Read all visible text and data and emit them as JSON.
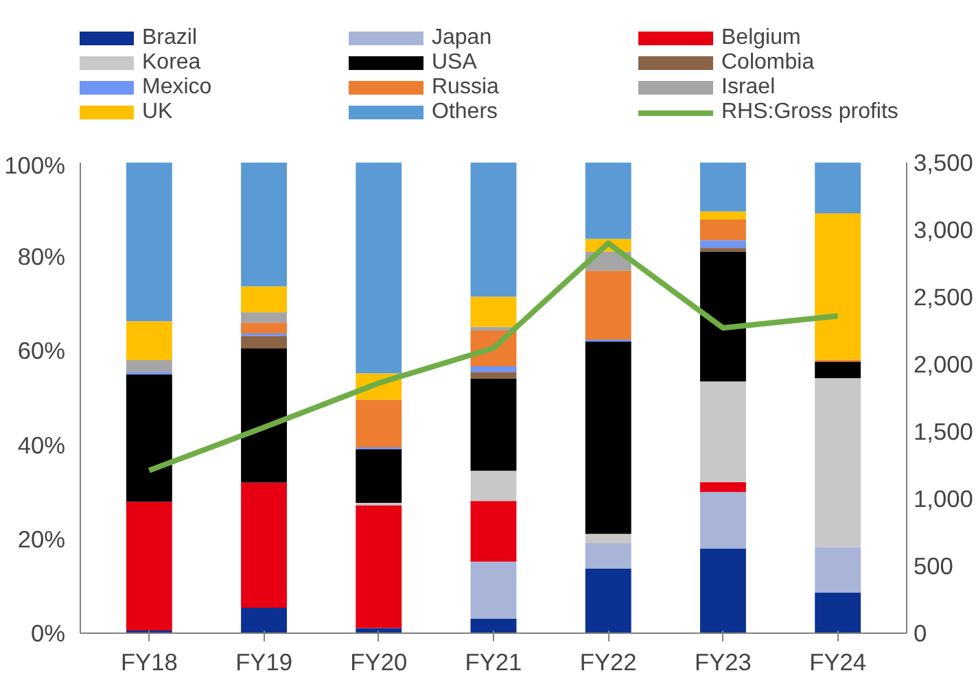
{
  "chart_data": {
    "type": "bar",
    "stacked": true,
    "categories": [
      "FY18",
      "FY19",
      "FY20",
      "FY21",
      "FY22",
      "FY23",
      "FY24"
    ],
    "series": [
      {
        "name": "Brazil",
        "color": "#0b3192",
        "values": [
          0.6,
          5.4,
          1.1,
          3.1,
          13.7,
          18.0,
          8.6
        ]
      },
      {
        "name": "Japan",
        "color": "#a9b4d9",
        "values": [
          0,
          0,
          0,
          12.1,
          5.4,
          12.0,
          9.7
        ]
      },
      {
        "name": "Belgium",
        "color": "#e60012",
        "values": [
          27.3,
          26.6,
          26.1,
          12.9,
          0,
          2.1,
          0
        ]
      },
      {
        "name": "Korea",
        "color": "#c8c8c8",
        "values": [
          0,
          0,
          0.5,
          6.4,
          2.0,
          21.4,
          35.9
        ]
      },
      {
        "name": "USA",
        "color": "#000000",
        "values": [
          27.1,
          28.5,
          11.4,
          19.6,
          40.9,
          27.6,
          3.5
        ]
      },
      {
        "name": "Colombia",
        "color": "#8b6446",
        "values": [
          0,
          2.7,
          0,
          1.4,
          0,
          0.8,
          0
        ]
      },
      {
        "name": "Mexico",
        "color": "#6f95f5",
        "values": [
          0.5,
          0.5,
          0.4,
          1.2,
          0.4,
          1.6,
          0
        ]
      },
      {
        "name": "Russia",
        "color": "#ed7d31",
        "values": [
          0,
          2.3,
          10.1,
          7.6,
          14.6,
          4.4,
          0.4
        ]
      },
      {
        "name": "Israel",
        "color": "#a5a5a5",
        "values": [
          2.5,
          2.2,
          0,
          0.8,
          4.1,
          0,
          0
        ]
      },
      {
        "name": "UK",
        "color": "#ffc000",
        "values": [
          8.3,
          5.5,
          5.6,
          6.4,
          2.7,
          1.7,
          31.1
        ]
      },
      {
        "name": "Others",
        "color": "#5b9bd5",
        "values": [
          33.7,
          26.3,
          44.8,
          28.5,
          16.2,
          10.4,
          10.8
        ]
      },
      {
        "name": "RHS:Gross profits",
        "color": "#70ad47",
        "type": "line",
        "axis": "y2",
        "values": [
          1210,
          1530,
          1860,
          2120,
          2900,
          2270,
          2360
        ]
      }
    ],
    "ylim": [
      0,
      100
    ],
    "yticks": [
      {
        "value": 0,
        "label": "0%"
      },
      {
        "value": 20,
        "label": "20%"
      },
      {
        "value": 40,
        "label": "40%"
      },
      {
        "value": 60,
        "label": "60%"
      },
      {
        "value": 80,
        "label": "80%"
      },
      {
        "value": 100,
        "label": "100%"
      }
    ],
    "y2lim": [
      0,
      3500
    ],
    "y2ticks": [
      0,
      {
        "value": 500,
        "label": "500"
      },
      {
        "value": 1000,
        "label": "1,000"
      },
      {
        "value": 1500,
        "label": "1,500"
      },
      {
        "value": 2000,
        "label": "2,000"
      },
      {
        "value": 2500,
        "label": "2,500"
      },
      {
        "value": 3000,
        "label": "3,000"
      },
      {
        "value": 3500,
        "label": "3,500"
      }
    ],
    "legend": "top",
    "grid": false,
    "marker": "none"
  }
}
